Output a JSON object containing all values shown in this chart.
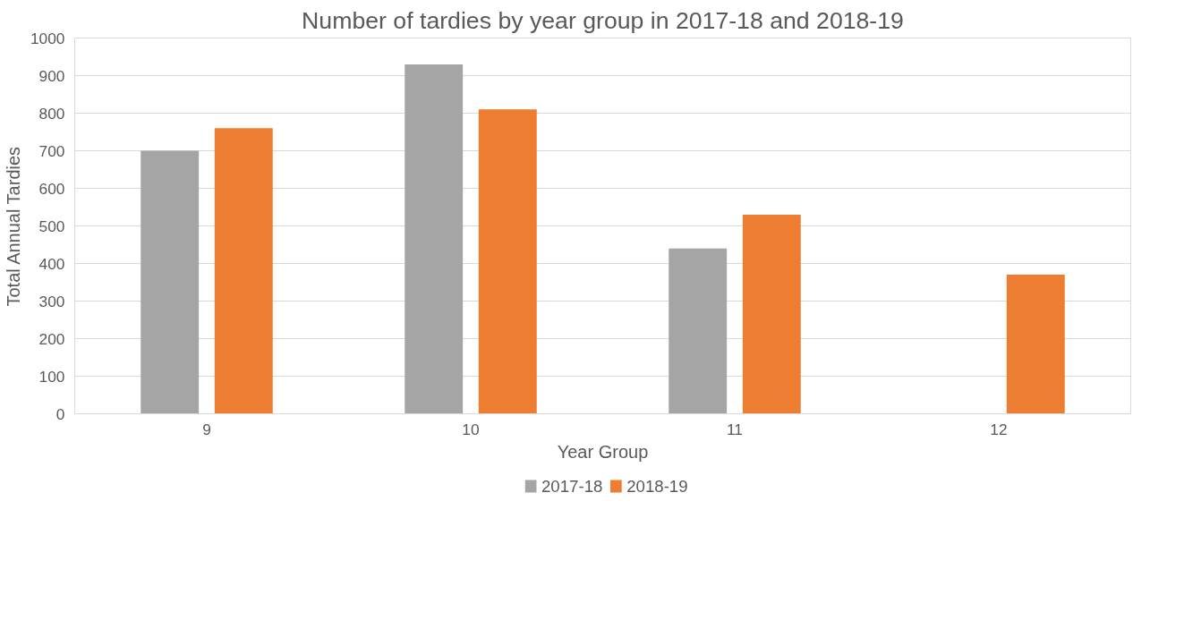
{
  "chart_data": {
    "type": "bar",
    "title": "Number of tardies by year group in 2017-18 and 2018-19",
    "xlabel": "Year Group",
    "ylabel": "Total Annual Tardies",
    "categories": [
      "9",
      "10",
      "11",
      "12"
    ],
    "series": [
      {
        "name": "2017-18",
        "color": "#a5a5a5",
        "values": [
          700,
          930,
          440,
          null
        ]
      },
      {
        "name": "2018-19",
        "color": "#ed7d31",
        "values": [
          760,
          810,
          530,
          370
        ]
      }
    ],
    "ylim": [
      0,
      1000
    ],
    "yticks": [
      0,
      100,
      200,
      300,
      400,
      500,
      600,
      700,
      800,
      900,
      1000
    ],
    "grid": "y",
    "legend": "bottom"
  }
}
